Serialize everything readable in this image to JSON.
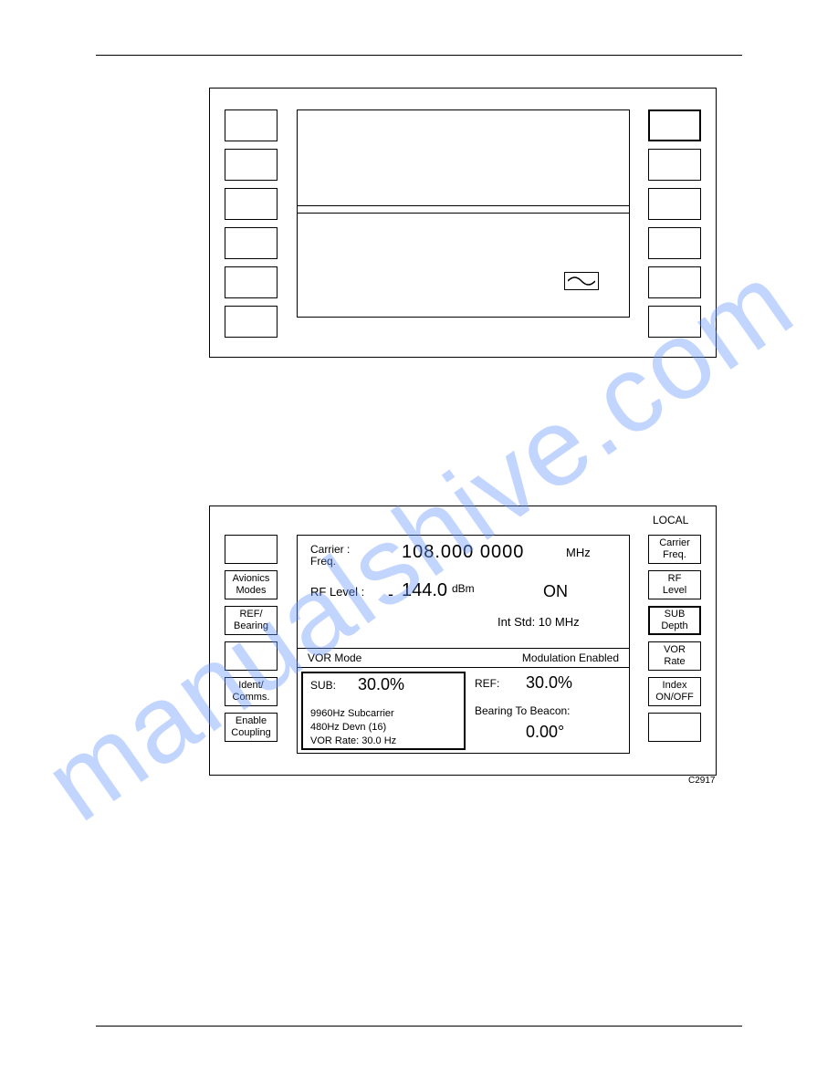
{
  "watermark": "manualshive.com",
  "panel2": {
    "local": "LOCAL",
    "id": "C2917",
    "left_keys": [
      "",
      "Avionics\nModes",
      "REF/\nBearing",
      "",
      "Ident/\nComms.",
      "Enable\nCoupling"
    ],
    "right_keys": [
      "Carrier\nFreq.",
      "RF\nLevel",
      "SUB\nDepth",
      "VOR\nRate",
      "Index\nON/OFF",
      ""
    ],
    "right_bold_index": 2,
    "carrier_label": "Carrier :\nFreq.",
    "carrier_value": "108.000 0000",
    "carrier_unit": "MHz",
    "rf_label": "RF Level :",
    "rf_minus": "-",
    "rf_value": "144.0",
    "rf_unit": "dBm",
    "on": "ON",
    "intstd": "Int Std: 10 MHz",
    "mode_left": "VOR Mode",
    "mode_right": "Modulation Enabled",
    "sub_label": "SUB:",
    "sub_value": "30.0%",
    "sub_line1": "9960Hz Subcarrier",
    "sub_line2": "480Hz Devn (16)",
    "sub_line3": "VOR Rate: 30.0 Hz",
    "ref_label": "REF:",
    "ref_value": "30.0%",
    "btb_label": "Bearing To Beacon:",
    "btb_value": "0.00°"
  }
}
